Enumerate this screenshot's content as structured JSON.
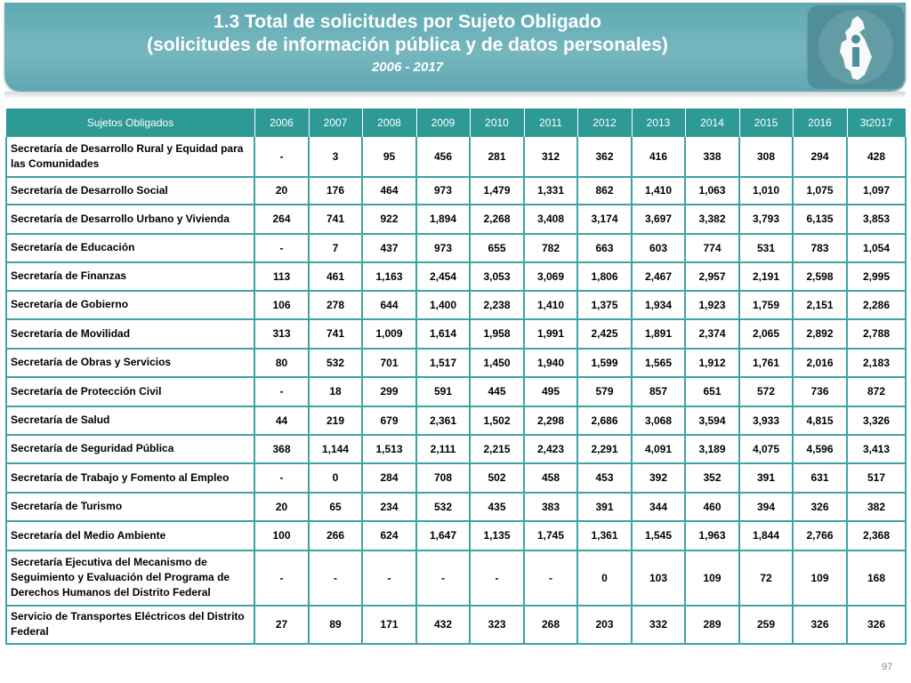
{
  "header": {
    "title_line1": "1.3 Total de solicitudes por Sujeto Obligado",
    "title_line2": "(solicitudes de información pública y de datos personales)",
    "years": "2006 - 2017",
    "logo_icon": "mexico-city-map-logo-icon"
  },
  "colors": {
    "banner": "#6db1ba",
    "header_row": "#2e9a96",
    "grid": "#3ca4a1"
  },
  "table": {
    "columns": [
      "Sujetos Obligados",
      "2006",
      "2007",
      "2008",
      "2009",
      "2010",
      "2011",
      "2012",
      "2013",
      "2014",
      "2015",
      "2016",
      "3t2017"
    ],
    "rows": [
      {
        "name": "Secretaría de Desarrollo Rural y Equidad para las Comunidades",
        "values": [
          "-",
          "3",
          "95",
          "456",
          "281",
          "312",
          "362",
          "416",
          "338",
          "308",
          "294",
          "428"
        ]
      },
      {
        "name": "Secretaría de Desarrollo Social",
        "values": [
          "20",
          "176",
          "464",
          "973",
          "1,479",
          "1,331",
          "862",
          "1,410",
          "1,063",
          "1,010",
          "1,075",
          "1,097"
        ]
      },
      {
        "name": "Secretaría de Desarrollo Urbano y Vivienda",
        "values": [
          "264",
          "741",
          "922",
          "1,894",
          "2,268",
          "3,408",
          "3,174",
          "3,697",
          "3,382",
          "3,793",
          "6,135",
          "3,853"
        ]
      },
      {
        "name": "Secretaría de Educación",
        "values": [
          "-",
          "7",
          "437",
          "973",
          "655",
          "782",
          "663",
          "603",
          "774",
          "531",
          "783",
          "1,054"
        ]
      },
      {
        "name": "Secretaría de Finanzas",
        "values": [
          "113",
          "461",
          "1,163",
          "2,454",
          "3,053",
          "3,069",
          "1,806",
          "2,467",
          "2,957",
          "2,191",
          "2,598",
          "2,995"
        ]
      },
      {
        "name": "Secretaría de Gobierno",
        "values": [
          "106",
          "278",
          "644",
          "1,400",
          "2,238",
          "1,410",
          "1,375",
          "1,934",
          "1,923",
          "1,759",
          "2,151",
          "2,286"
        ]
      },
      {
        "name": "Secretaría de Movilidad",
        "values": [
          "313",
          "741",
          "1,009",
          "1,614",
          "1,958",
          "1,991",
          "2,425",
          "1,891",
          "2,374",
          "2,065",
          "2,892",
          "2,788"
        ]
      },
      {
        "name": "Secretaría de Obras y Servicios",
        "values": [
          "80",
          "532",
          "701",
          "1,517",
          "1,450",
          "1,940",
          "1,599",
          "1,565",
          "1,912",
          "1,761",
          "2,016",
          "2,183"
        ]
      },
      {
        "name": "Secretaría de Protección Civil",
        "values": [
          "-",
          "18",
          "299",
          "591",
          "445",
          "495",
          "579",
          "857",
          "651",
          "572",
          "736",
          "872"
        ]
      },
      {
        "name": "Secretaría de Salud",
        "values": [
          "44",
          "219",
          "679",
          "2,361",
          "1,502",
          "2,298",
          "2,686",
          "3,068",
          "3,594",
          "3,933",
          "4,815",
          "3,326"
        ]
      },
      {
        "name": "Secretaría de Seguridad Pública",
        "values": [
          "368",
          "1,144",
          "1,513",
          "2,111",
          "2,215",
          "2,423",
          "2,291",
          "4,091",
          "3,189",
          "4,075",
          "4,596",
          "3,413"
        ]
      },
      {
        "name": "Secretaría de Trabajo y Fomento al Empleo",
        "values": [
          "-",
          "0",
          "284",
          "708",
          "502",
          "458",
          "453",
          "392",
          "352",
          "391",
          "631",
          "517"
        ]
      },
      {
        "name": "Secretaría de Turismo",
        "values": [
          "20",
          "65",
          "234",
          "532",
          "435",
          "383",
          "391",
          "344",
          "460",
          "394",
          "326",
          "382"
        ]
      },
      {
        "name": "Secretaría del Medio Ambiente",
        "values": [
          "100",
          "266",
          "624",
          "1,647",
          "1,135",
          "1,745",
          "1,361",
          "1,545",
          "1,963",
          "1,844",
          "2,766",
          "2,368"
        ]
      },
      {
        "name": "Secretaría Ejecutiva del Mecanismo de Seguimiento y Evaluación del Programa de Derechos Humanos del Distrito Federal",
        "values": [
          "-",
          "-",
          "-",
          "-",
          "-",
          "-",
          "0",
          "103",
          "109",
          "72",
          "109",
          "168"
        ]
      },
      {
        "name": "Servicio de Transportes Eléctricos del Distrito Federal",
        "values": [
          "27",
          "89",
          "171",
          "432",
          "323",
          "268",
          "203",
          "332",
          "289",
          "259",
          "326",
          "326"
        ]
      }
    ]
  },
  "footer": {
    "page_number": "97"
  }
}
